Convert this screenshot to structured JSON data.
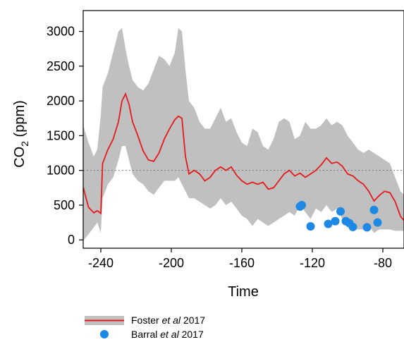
{
  "chart_data": {
    "type": "line",
    "title": "",
    "xlabel": "Time",
    "ylabel_main": "CO",
    "ylabel_sub": "2",
    "ylabel_unit": " (ppm)",
    "xlim": [
      -250,
      -68
    ],
    "ylim": [
      -120,
      3300
    ],
    "xticks": [
      -240,
      -200,
      -160,
      -120,
      -80
    ],
    "xtick_labels": [
      "-240",
      "-200",
      "-160",
      "-120",
      "-80"
    ],
    "yticks": [
      0,
      500,
      1000,
      1500,
      2000,
      2500,
      3000
    ],
    "ytick_labels": [
      "0",
      "500",
      "1000",
      "1500",
      "2000",
      "2500",
      "3000"
    ],
    "reference_line": {
      "y": 1000,
      "style": "dotted"
    },
    "legend_position": "bottom-left, below plot",
    "colors": {
      "band": "#c0c0c0",
      "median": "#e41a1c",
      "points": "#1e88e5"
    },
    "series": [
      {
        "name_main": "Foster ",
        "name_italic": "et al",
        "name_tail": " 2017",
        "kind": "median-with-band",
        "x": [
          -250,
          -247,
          -244,
          -242,
          -240,
          -239,
          -236,
          -233,
          -230,
          -228,
          -226,
          -224,
          -222,
          -219,
          -216,
          -213,
          -210,
          -207,
          -204,
          -201,
          -198,
          -196,
          -194,
          -192,
          -190,
          -187,
          -184,
          -181,
          -178,
          -175,
          -172,
          -169,
          -166,
          -163,
          -160,
          -157,
          -154,
          -151,
          -148,
          -145,
          -142,
          -139,
          -136,
          -133,
          -130,
          -127,
          -124,
          -121,
          -118,
          -115,
          -112,
          -109,
          -106,
          -103,
          -100,
          -97,
          -94,
          -91,
          -88,
          -85,
          -82,
          -79,
          -76,
          -73,
          -70,
          -68
        ],
        "median": [
          760,
          470,
          390,
          420,
          380,
          1100,
          1300,
          1450,
          1700,
          2000,
          2100,
          1950,
          1700,
          1500,
          1280,
          1150,
          1130,
          1250,
          1450,
          1600,
          1730,
          1780,
          1750,
          1200,
          950,
          1000,
          950,
          850,
          900,
          1000,
          1050,
          1000,
          1050,
          930,
          850,
          800,
          830,
          800,
          830,
          730,
          750,
          850,
          950,
          1000,
          920,
          960,
          900,
          950,
          1000,
          1080,
          1180,
          1100,
          1120,
          1060,
          950,
          920,
          850,
          800,
          700,
          560,
          640,
          700,
          680,
          550,
          340,
          280
        ],
        "upper": [
          1650,
          1400,
          1200,
          1300,
          1800,
          2200,
          2400,
          2700,
          3000,
          3050,
          2750,
          2500,
          2300,
          2200,
          2150,
          2250,
          2450,
          2650,
          2600,
          2500,
          2700,
          3050,
          3000,
          2450,
          2000,
          1900,
          1700,
          1600,
          1600,
          1750,
          1900,
          1700,
          1750,
          1550,
          1400,
          1350,
          1600,
          1550,
          1350,
          1300,
          1450,
          1700,
          1750,
          1700,
          1450,
          1500,
          1700,
          1600,
          1600,
          1650,
          1750,
          1650,
          1700,
          1650,
          1500,
          1400,
          1300,
          1250,
          1300,
          1250,
          1200,
          1150,
          1100,
          900,
          700,
          650
        ],
        "lower": [
          -10,
          80,
          180,
          250,
          100,
          600,
          800,
          900,
          1150,
          1350,
          1350,
          1150,
          950,
          850,
          800,
          700,
          650,
          750,
          850,
          850,
          850,
          900,
          800,
          700,
          600,
          600,
          550,
          500,
          450,
          500,
          600,
          500,
          550,
          450,
          350,
          300,
          200,
          300,
          250,
          200,
          250,
          300,
          350,
          400,
          350,
          500,
          400,
          300,
          450,
          400,
          500,
          400,
          450,
          300,
          200,
          150,
          150,
          150,
          200,
          100,
          150,
          150,
          150,
          130,
          130,
          130
        ]
      },
      {
        "name_main": "Barral ",
        "name_italic": "et al",
        "name_tail": " 2017",
        "kind": "scatter",
        "points": [
          {
            "x": -127,
            "y": 480
          },
          {
            "x": -126,
            "y": 500
          },
          {
            "x": -121,
            "y": 195
          },
          {
            "x": -111,
            "y": 230
          },
          {
            "x": -107,
            "y": 270
          },
          {
            "x": -104,
            "y": 410
          },
          {
            "x": -101,
            "y": 270
          },
          {
            "x": -99,
            "y": 240
          },
          {
            "x": -97,
            "y": 185
          },
          {
            "x": -89,
            "y": 180
          },
          {
            "x": -85,
            "y": 430
          },
          {
            "x": -83,
            "y": 250
          }
        ]
      }
    ]
  }
}
